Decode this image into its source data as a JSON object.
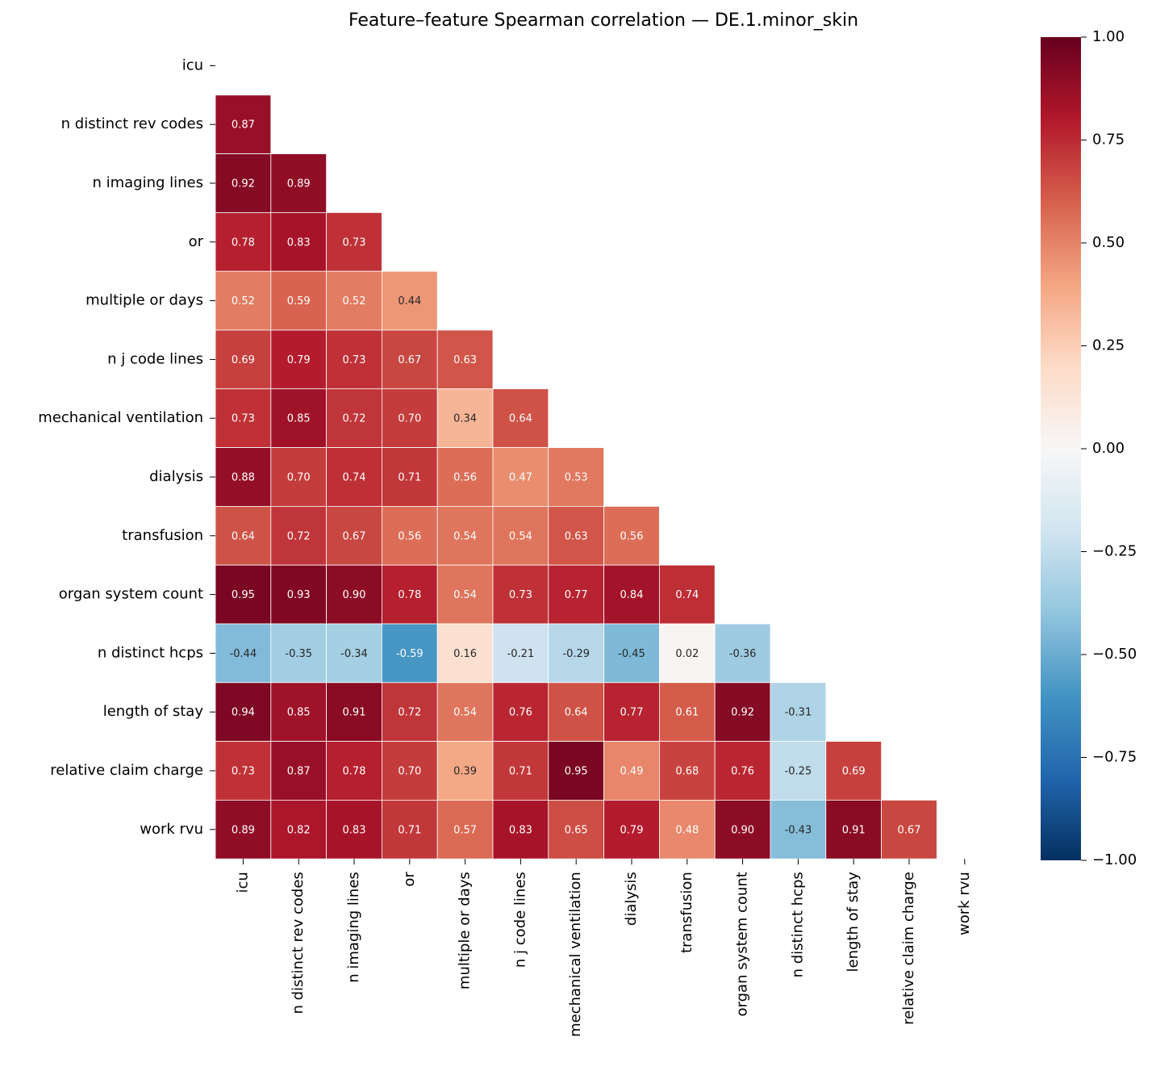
{
  "chart_data": {
    "type": "heatmap",
    "title": "Feature–feature Spearman correlation — DE.1.minor_skin",
    "x_categories": [
      "icu",
      "n distinct rev codes",
      "n imaging lines",
      "or",
      "multiple or days",
      "n j code lines",
      "mechanical ventilation",
      "dialysis",
      "transfusion",
      "organ system count",
      "n distinct hcps",
      "length of stay",
      "relative claim charge",
      "work rvu"
    ],
    "y_categories": [
      "icu",
      "n distinct rev codes",
      "n imaging lines",
      "or",
      "multiple or days",
      "n j code lines",
      "mechanical ventilation",
      "dialysis",
      "transfusion",
      "organ system count",
      "n distinct hcps",
      "length of stay",
      "relative claim charge",
      "work rvu"
    ],
    "values": [
      [
        null,
        null,
        null,
        null,
        null,
        null,
        null,
        null,
        null,
        null,
        null,
        null,
        null,
        null
      ],
      [
        0.87,
        null,
        null,
        null,
        null,
        null,
        null,
        null,
        null,
        null,
        null,
        null,
        null,
        null
      ],
      [
        0.92,
        0.89,
        null,
        null,
        null,
        null,
        null,
        null,
        null,
        null,
        null,
        null,
        null,
        null
      ],
      [
        0.78,
        0.83,
        0.73,
        null,
        null,
        null,
        null,
        null,
        null,
        null,
        null,
        null,
        null,
        null
      ],
      [
        0.52,
        0.59,
        0.52,
        0.44,
        null,
        null,
        null,
        null,
        null,
        null,
        null,
        null,
        null,
        null
      ],
      [
        0.69,
        0.79,
        0.73,
        0.67,
        0.63,
        null,
        null,
        null,
        null,
        null,
        null,
        null,
        null,
        null
      ],
      [
        0.73,
        0.85,
        0.72,
        0.7,
        0.34,
        0.64,
        null,
        null,
        null,
        null,
        null,
        null,
        null,
        null
      ],
      [
        0.88,
        0.7,
        0.74,
        0.71,
        0.56,
        0.47,
        0.53,
        null,
        null,
        null,
        null,
        null,
        null,
        null
      ],
      [
        0.64,
        0.72,
        0.67,
        0.56,
        0.54,
        0.54,
        0.63,
        0.56,
        null,
        null,
        null,
        null,
        null,
        null
      ],
      [
        0.95,
        0.93,
        0.9,
        0.78,
        0.54,
        0.73,
        0.77,
        0.84,
        0.74,
        null,
        null,
        null,
        null,
        null
      ],
      [
        -0.44,
        -0.35,
        -0.34,
        -0.59,
        0.16,
        -0.21,
        -0.29,
        -0.45,
        0.02,
        -0.36,
        null,
        null,
        null,
        null
      ],
      [
        0.94,
        0.85,
        0.91,
        0.72,
        0.54,
        0.76,
        0.64,
        0.77,
        0.61,
        0.92,
        -0.31,
        null,
        null,
        null
      ],
      [
        0.73,
        0.87,
        0.78,
        0.7,
        0.39,
        0.71,
        0.95,
        0.49,
        0.68,
        0.76,
        -0.25,
        0.69,
        null,
        null
      ],
      [
        0.89,
        0.82,
        0.83,
        0.71,
        0.57,
        0.83,
        0.65,
        0.79,
        0.48,
        0.9,
        -0.43,
        0.91,
        0.67,
        null
      ]
    ],
    "value_labels": [
      [
        null,
        null,
        null,
        null,
        null,
        null,
        null,
        null,
        null,
        null,
        null,
        null,
        null,
        null
      ],
      [
        "0.87",
        null,
        null,
        null,
        null,
        null,
        null,
        null,
        null,
        null,
        null,
        null,
        null,
        null
      ],
      [
        "0.92",
        "0.89",
        null,
        null,
        null,
        null,
        null,
        null,
        null,
        null,
        null,
        null,
        null,
        null
      ],
      [
        "0.78",
        "0.83",
        "0.73",
        null,
        null,
        null,
        null,
        null,
        null,
        null,
        null,
        null,
        null,
        null
      ],
      [
        "0.52",
        "0.59",
        "0.52",
        "0.44",
        null,
        null,
        null,
        null,
        null,
        null,
        null,
        null,
        null,
        null
      ],
      [
        "0.69",
        "0.79",
        "0.73",
        "0.67",
        "0.63",
        null,
        null,
        null,
        null,
        null,
        null,
        null,
        null,
        null
      ],
      [
        "0.73",
        "0.85",
        "0.72",
        "0.70",
        "0.34",
        "0.64",
        null,
        null,
        null,
        null,
        null,
        null,
        null,
        null
      ],
      [
        "0.88",
        "0.70",
        "0.74",
        "0.71",
        "0.56",
        "0.47",
        "0.53",
        null,
        null,
        null,
        null,
        null,
        null,
        null
      ],
      [
        "0.64",
        "0.72",
        "0.67",
        "0.56",
        "0.54",
        "0.54",
        "0.63",
        "0.56",
        null,
        null,
        null,
        null,
        null,
        null
      ],
      [
        "0.95",
        "0.93",
        "0.90",
        "0.78",
        "0.54",
        "0.73",
        "0.77",
        "0.84",
        "0.74",
        null,
        null,
        null,
        null,
        null
      ],
      [
        "-0.44",
        "-0.35",
        "-0.34",
        "-0.59",
        "0.16",
        "-0.21",
        "-0.29",
        "-0.45",
        "0.02",
        "-0.36",
        null,
        null,
        null,
        null
      ],
      [
        "0.94",
        "0.85",
        "0.91",
        "0.72",
        "0.54",
        "0.76",
        "0.64",
        "0.77",
        "0.61",
        "0.92",
        "-0.31",
        null,
        null,
        null
      ],
      [
        "0.73",
        "0.87",
        "0.78",
        "0.70",
        "0.39",
        "0.71",
        "0.95",
        "0.49",
        "0.68",
        "0.76",
        "-0.25",
        "0.69",
        null,
        null
      ],
      [
        "0.89",
        "0.82",
        "0.83",
        "0.71",
        "0.57",
        "0.83",
        "0.65",
        "0.79",
        "0.48",
        "0.90",
        "-0.43",
        "0.91",
        "0.67",
        null
      ]
    ],
    "colormap": [
      "#053061",
      "#2166ac",
      "#4393c3",
      "#92c5de",
      "#d1e5f0",
      "#f7f7f7",
      "#fddbc7",
      "#f4a582",
      "#d6604d",
      "#b2182b",
      "#67001f"
    ],
    "clim": [
      -1,
      1
    ],
    "cticks": [
      {
        "value": -1,
        "label": "−1.00"
      },
      {
        "value": -0.75,
        "label": "−0.75"
      },
      {
        "value": -0.5,
        "label": "−0.50"
      },
      {
        "value": -0.25,
        "label": "−0.25"
      },
      {
        "value": 0,
        "label": "0.00"
      },
      {
        "value": 0.25,
        "label": "0.25"
      },
      {
        "value": 0.5,
        "label": "0.50"
      },
      {
        "value": 0.75,
        "label": "0.75"
      },
      {
        "value": 1,
        "label": "1.00"
      }
    ]
  }
}
